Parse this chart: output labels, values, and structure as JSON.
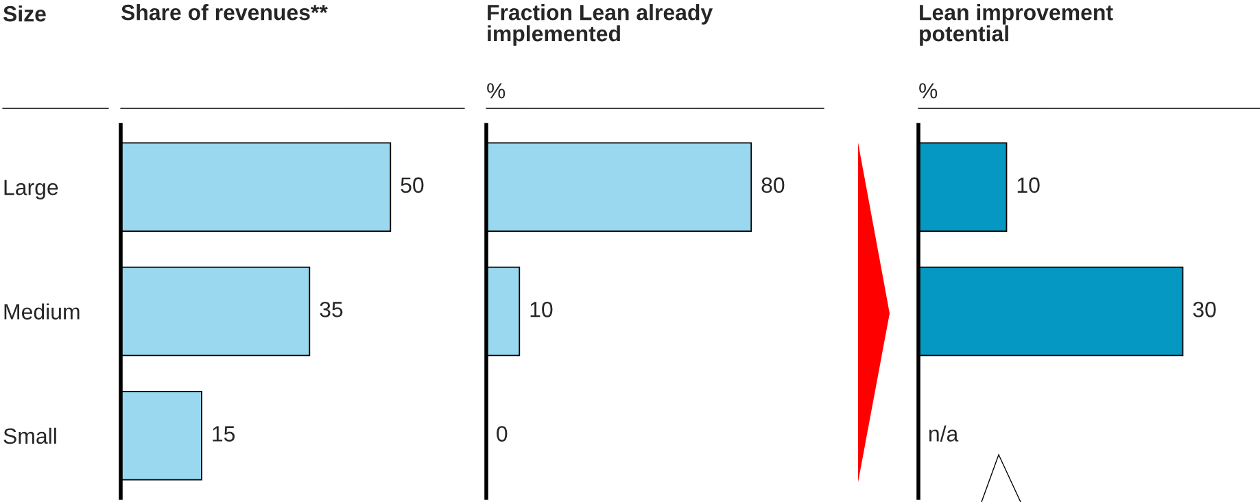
{
  "chart_data": [
    {
      "type": "bar",
      "orientation": "horizontal",
      "title": "Share of revenues**",
      "ylabel": "Size",
      "categories": [
        "Large",
        "Medium",
        "Small"
      ],
      "values": [
        50,
        35,
        15
      ],
      "color": "#99d8ee",
      "data_labels": true,
      "tick_labels": "y"
    },
    {
      "type": "bar",
      "orientation": "horizontal",
      "title": "Fraction Lean already implemented",
      "subtitle": "%",
      "categories": [
        null,
        null,
        null
      ],
      "values": [
        80,
        10,
        0
      ],
      "color": "#99d8ee",
      "data_labels": true,
      "tick_labels": false
    },
    {
      "type": "bar",
      "orientation": "horizontal",
      "title": "Lean improvement potential",
      "subtitle": "%",
      "categories": [
        null,
        null,
        null
      ],
      "values": [
        10,
        30,
        null
      ],
      "value_labels": [
        "10",
        "30",
        "n/a"
      ],
      "color": "#0598c2",
      "tick_labels": false
    }
  ]
}
